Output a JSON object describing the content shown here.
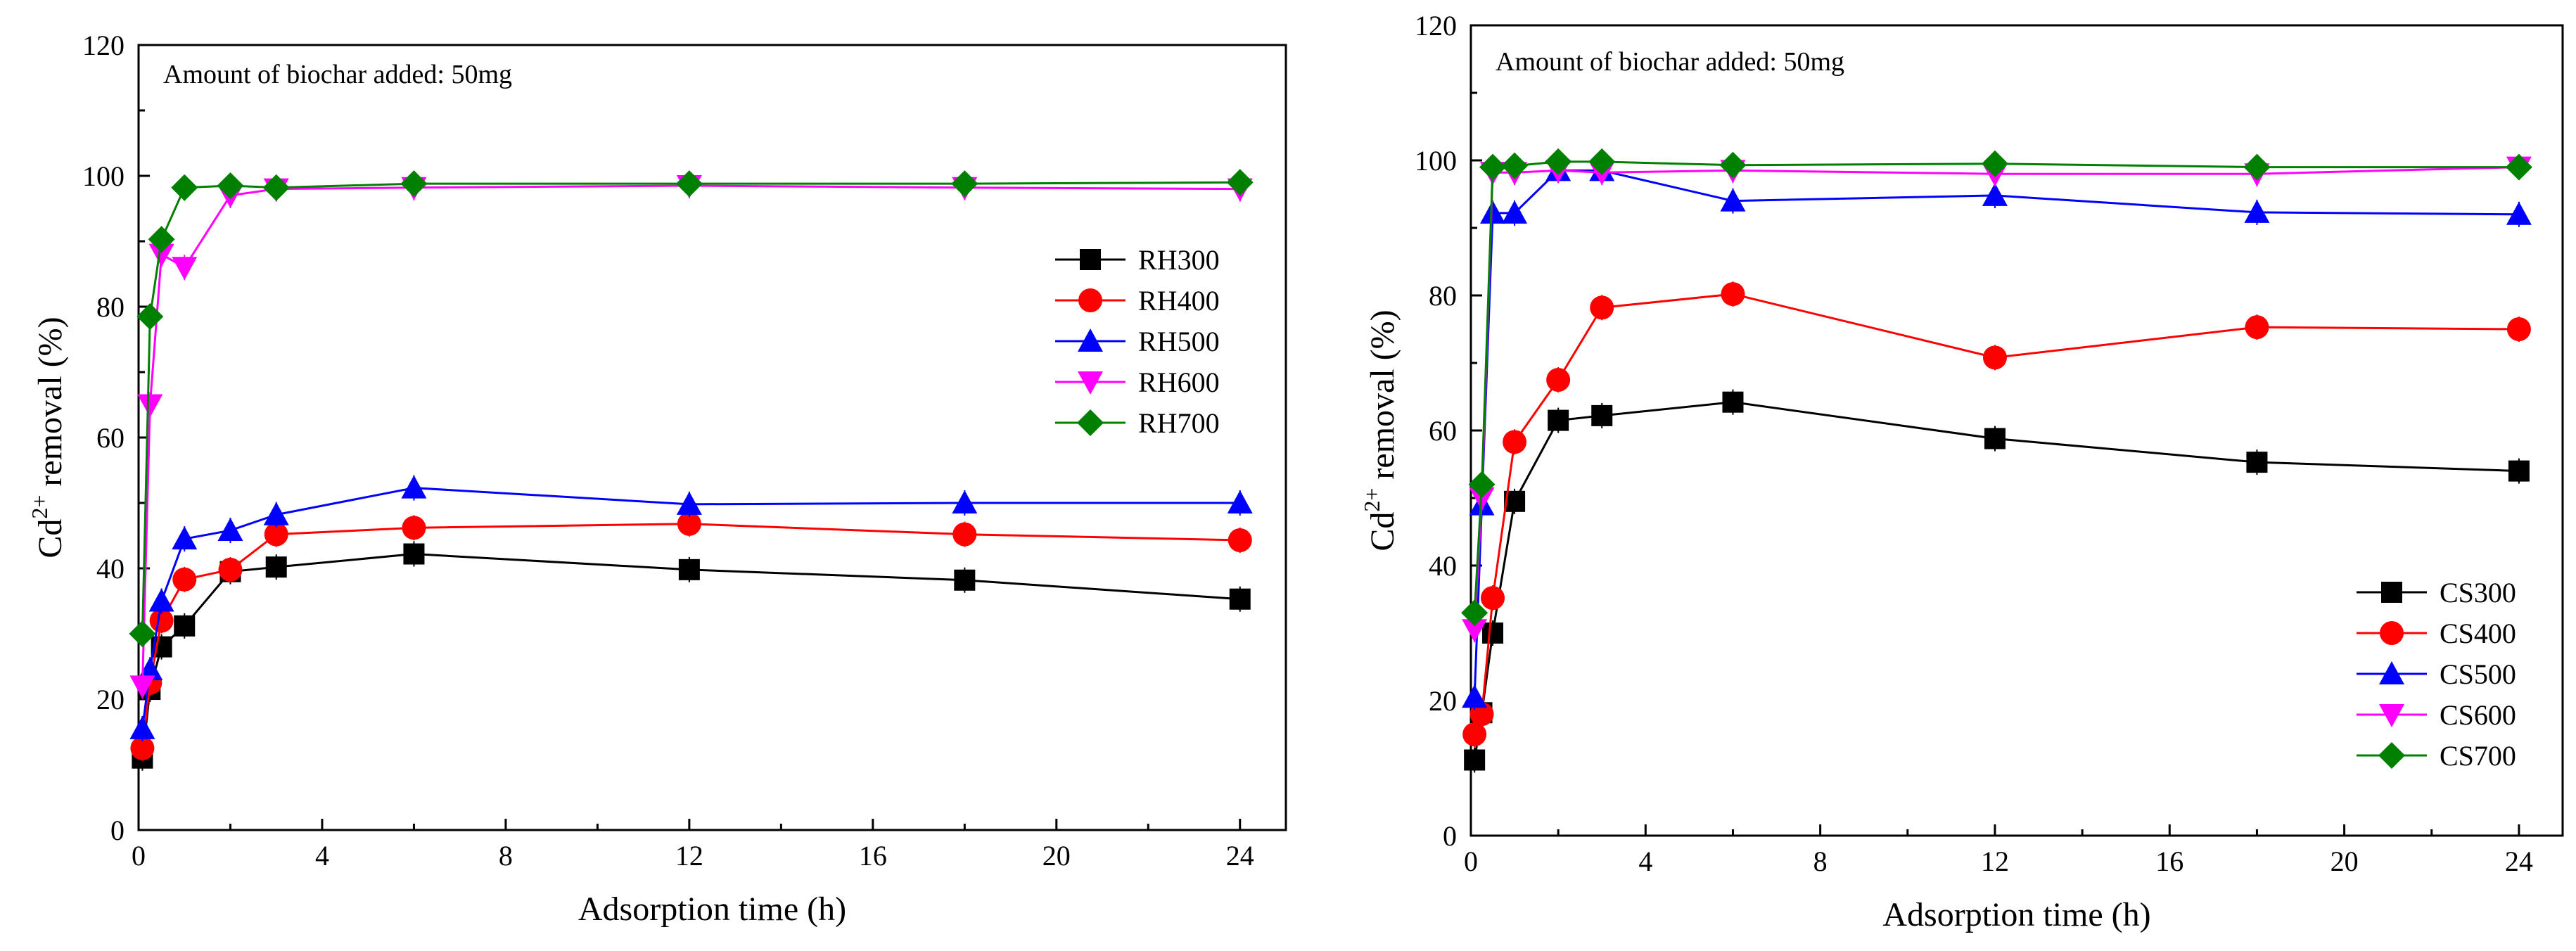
{
  "chart_data": [
    {
      "type": "line",
      "annotation": "Amount of biochar added: 50mg",
      "xlabel": "Adsorption time (h)",
      "ylabel_main": "Cd",
      "ylabel_sup": "2+",
      "ylabel_rest": " removal (%)",
      "xlim": [
        0,
        25
      ],
      "ylim": [
        0,
        120
      ],
      "xticks": [
        0,
        4,
        8,
        12,
        16,
        20,
        24
      ],
      "yticks": [
        0,
        20,
        40,
        60,
        80,
        100,
        120
      ],
      "legend_position": "center-right",
      "series": [
        {
          "name": "RH300",
          "color": "#000000",
          "marker": "square",
          "x": [
            0.083,
            0.25,
            0.5,
            1,
            2,
            3,
            6,
            12,
            18,
            24
          ],
          "y": [
            11,
            21.5,
            28,
            31.2,
            39.5,
            40.2,
            42.2,
            39.8,
            38.2,
            35.3
          ]
        },
        {
          "name": "RH400",
          "color": "#ff0000",
          "marker": "circle",
          "x": [
            0.083,
            0.25,
            0.5,
            1,
            2,
            3,
            6,
            12,
            18,
            24
          ],
          "y": [
            12.5,
            22.5,
            32,
            38.3,
            39.8,
            45.2,
            46.2,
            46.8,
            45.2,
            44.3
          ]
        },
        {
          "name": "RH500",
          "color": "#0000ff",
          "marker": "triangle-up",
          "x": [
            0.083,
            0.25,
            0.5,
            1,
            2,
            3,
            6,
            12,
            18,
            24
          ],
          "y": [
            15.5,
            24.5,
            35,
            44.5,
            45.8,
            48.2,
            52.3,
            49.8,
            50,
            50
          ]
        },
        {
          "name": "RH600",
          "color": "#ff00ff",
          "marker": "triangle-down",
          "x": [
            0.083,
            0.25,
            0.5,
            1,
            2,
            3,
            6,
            12,
            18,
            24
          ],
          "y": [
            22,
            65,
            88,
            86,
            97,
            98,
            98.2,
            98.5,
            98.2,
            98
          ]
        },
        {
          "name": "RH700",
          "color": "#008000",
          "marker": "diamond",
          "x": [
            0.083,
            0.25,
            0.5,
            1,
            2,
            3,
            6,
            12,
            18,
            24
          ],
          "y": [
            30,
            78.5,
            90.3,
            98.2,
            98.5,
            98.2,
            98.8,
            98.8,
            98.8,
            99
          ]
        }
      ]
    },
    {
      "type": "line",
      "annotation": "Amount of biochar added: 50mg",
      "xlabel": "Adsorption time (h)",
      "ylabel_main": "Cd",
      "ylabel_sup": "2+",
      "ylabel_rest": " removal (%)",
      "xlim": [
        0,
        25
      ],
      "ylim": [
        0,
        120
      ],
      "xticks": [
        0,
        4,
        8,
        12,
        16,
        20,
        24
      ],
      "yticks": [
        0,
        20,
        40,
        60,
        80,
        100,
        120
      ],
      "legend_position": "bottom-right",
      "series": [
        {
          "name": "CS300",
          "color": "#000000",
          "marker": "square",
          "x": [
            0.083,
            0.25,
            0.5,
            1,
            2,
            3,
            6,
            12,
            18,
            24
          ],
          "y": [
            11.2,
            18.2,
            30,
            49.5,
            61.5,
            62.2,
            64.2,
            58.8,
            55.3,
            54
          ]
        },
        {
          "name": "CS400",
          "color": "#ff0000",
          "marker": "circle",
          "x": [
            0.083,
            0.25,
            0.5,
            1,
            2,
            3,
            6,
            12,
            18,
            24
          ],
          "y": [
            15,
            18,
            35.2,
            58.3,
            67.5,
            78.2,
            80.2,
            70.8,
            75.3,
            75
          ]
        },
        {
          "name": "CS500",
          "color": "#0000ff",
          "marker": "triangle-up",
          "x": [
            0.083,
            0.25,
            0.5,
            1,
            2,
            3,
            6,
            12,
            18,
            24
          ],
          "y": [
            20.5,
            49,
            92.2,
            92.2,
            98.5,
            98.5,
            94,
            94.8,
            92.3,
            92
          ]
        },
        {
          "name": "CS600",
          "color": "#ff00ff",
          "marker": "triangle-down",
          "x": [
            0.083,
            0.25,
            0.5,
            1,
            2,
            3,
            6,
            12,
            18,
            24
          ],
          "y": [
            30.5,
            50,
            98.2,
            98.2,
            98.5,
            98.2,
            98.5,
            98,
            98,
            99
          ]
        },
        {
          "name": "CS700",
          "color": "#008000",
          "marker": "diamond",
          "x": [
            0.083,
            0.25,
            0.5,
            1,
            2,
            3,
            6,
            12,
            18,
            24
          ],
          "y": [
            33,
            52,
            99,
            99.2,
            99.8,
            99.8,
            99.3,
            99.5,
            99,
            99
          ]
        }
      ]
    }
  ]
}
